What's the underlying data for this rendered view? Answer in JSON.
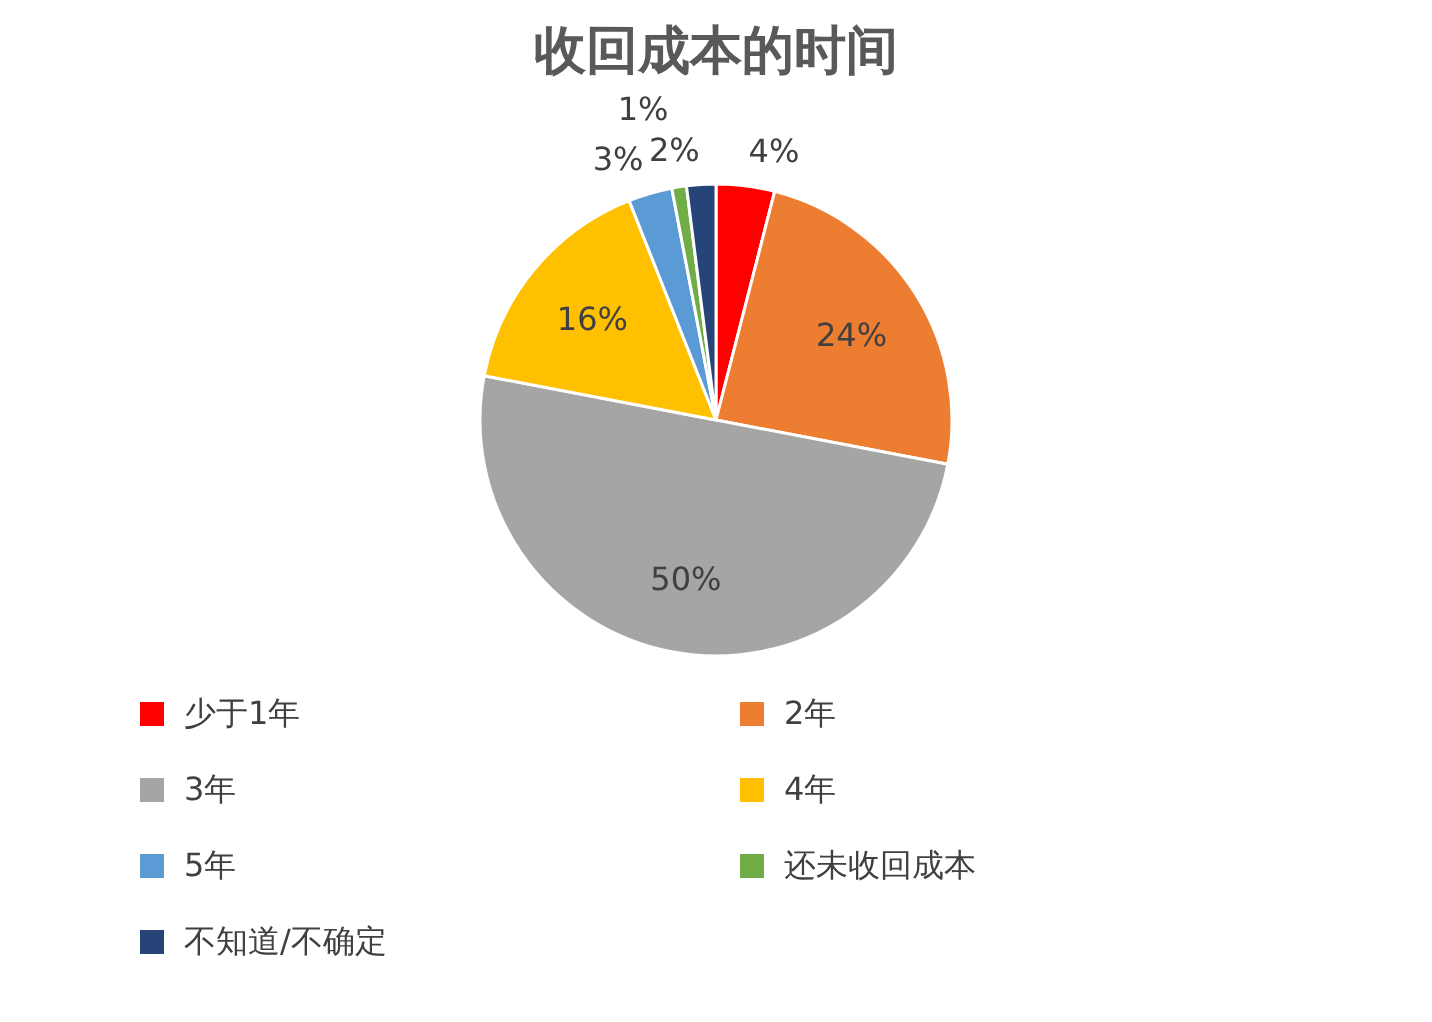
{
  "chart_data": {
    "type": "pie",
    "title": "收回成本的时间",
    "categories": [
      "少于1年",
      "2年",
      "3年",
      "4年",
      "5年",
      "还未收回成本",
      "不知道/不确定"
    ],
    "values": [
      4,
      24,
      50,
      16,
      3,
      1,
      2
    ],
    "colors": [
      "#ff0000",
      "#ed7d31",
      "#a5a5a5",
      "#ffc000",
      "#5b9bd5",
      "#70ad47",
      "#264478"
    ],
    "value_labels": [
      "4%",
      "24%",
      "50%",
      "16%",
      "3%",
      "1%",
      "2%"
    ],
    "legend": "bottom"
  }
}
